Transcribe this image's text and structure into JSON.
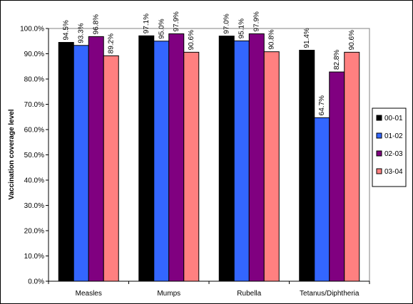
{
  "chart_data": {
    "type": "bar",
    "categories": [
      "Measles",
      "Mumps",
      "Rubella",
      "Tetanus/Diphtheria"
    ],
    "series": [
      {
        "name": "00-01",
        "color": "#000000",
        "values": [
          94.5,
          97.1,
          97.0,
          91.4
        ],
        "labels": [
          "94.5%",
          "97.1%",
          "97.0%",
          "91.4%"
        ]
      },
      {
        "name": "01-02",
        "color": "#3366FF",
        "values": [
          93.3,
          95.0,
          95.1,
          64.7
        ],
        "labels": [
          "93.3%",
          "95.0%",
          "95.1%",
          "64.7%"
        ]
      },
      {
        "name": "02-03",
        "color": "#800080",
        "values": [
          96.8,
          97.9,
          97.9,
          82.8
        ],
        "labels": [
          "96.8%",
          "97.9%",
          "97.9%",
          "82.8%"
        ]
      },
      {
        "name": "03-04",
        "color": "#FF8080",
        "values": [
          89.2,
          90.6,
          90.8,
          90.6
        ],
        "labels": [
          "89.2%",
          "90.6%",
          "90.8%",
          "90.6%"
        ]
      }
    ],
    "ylabel": "Vaccination coverage level",
    "xlabel": "",
    "ylim": [
      0,
      100
    ],
    "yticks": [
      "0.0%",
      "10.0%",
      "20.0%",
      "30.0%",
      "40.0%",
      "50.0%",
      "60.0%",
      "70.0%",
      "80.0%",
      "90.0%",
      "100.0%"
    ],
    "legend_position": "right",
    "grid": false
  }
}
